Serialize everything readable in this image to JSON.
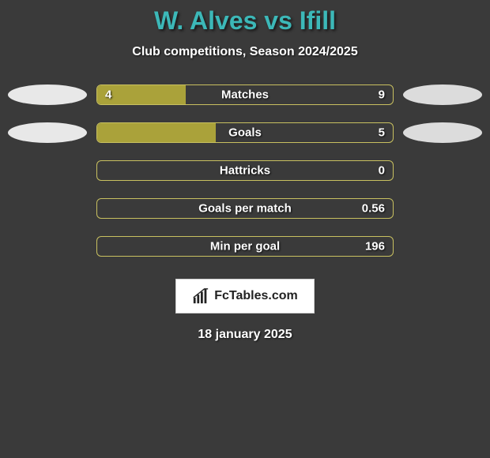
{
  "title": "W. Alves vs Ifill",
  "subtitle": "Club competitions, Season 2024/2025",
  "date": "18 january 2025",
  "logo_text": "FcTables.com",
  "colors": {
    "background": "#3a3a3a",
    "title_color": "#3cb8b8",
    "bar_fill": "#aaa23a",
    "bar_border": "#c8c060",
    "ellipse_left": "#e8e8e8",
    "ellipse_right": "#dcdcdc",
    "text": "#ffffff"
  },
  "stats": [
    {
      "label": "Matches",
      "left_value": "4",
      "right_value": "9",
      "left_fill_pct": 30,
      "right_fill_pct": 0,
      "show_left_ellipse": true,
      "show_right_ellipse": true
    },
    {
      "label": "Goals",
      "left_value": "",
      "right_value": "5",
      "left_fill_pct": 40,
      "right_fill_pct": 0,
      "show_left_ellipse": true,
      "show_right_ellipse": true
    },
    {
      "label": "Hattricks",
      "left_value": "",
      "right_value": "0",
      "left_fill_pct": 0,
      "right_fill_pct": 0,
      "show_left_ellipse": false,
      "show_right_ellipse": false
    },
    {
      "label": "Goals per match",
      "left_value": "",
      "right_value": "0.56",
      "left_fill_pct": 0,
      "right_fill_pct": 0,
      "show_left_ellipse": false,
      "show_right_ellipse": false
    },
    {
      "label": "Min per goal",
      "left_value": "",
      "right_value": "196",
      "left_fill_pct": 0,
      "right_fill_pct": 0,
      "show_left_ellipse": false,
      "show_right_ellipse": false
    }
  ]
}
